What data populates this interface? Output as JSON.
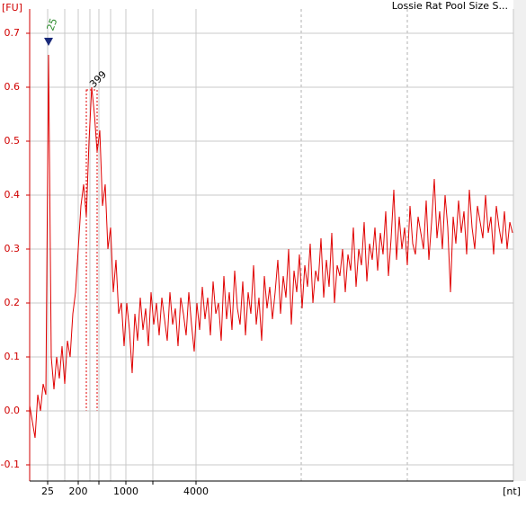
{
  "chart_data": {
    "type": "line",
    "title": "Lossie Rat Pool Size S...",
    "y_unit": "[FU]",
    "x_unit": "[nt]",
    "color": "#e00000",
    "ylim": [
      -0.13,
      0.745
    ],
    "yticks": [
      -0.1,
      {
        "value": 0,
        "label": "0.0"
      },
      0.1,
      0.2,
      0.3,
      0.4,
      0.5,
      0.6,
      0.7
    ],
    "x_axis_labels": [
      "25",
      "200",
      "1000",
      "4000"
    ],
    "grid": true,
    "annotations": [
      {
        "text": "25",
        "color": "#2a8a2a"
      },
      {
        "text": "399",
        "color": "#000000"
      }
    ],
    "values": [
      0.01,
      -0.02,
      -0.05,
      0.03,
      0.0,
      0.05,
      0.03,
      0.66,
      0.1,
      0.04,
      0.1,
      0.06,
      0.12,
      0.05,
      0.13,
      0.1,
      0.18,
      0.22,
      0.3,
      0.38,
      0.42,
      0.36,
      0.5,
      0.6,
      0.55,
      0.48,
      0.52,
      0.38,
      0.42,
      0.3,
      0.34,
      0.22,
      0.28,
      0.18,
      0.2,
      0.12,
      0.2,
      0.15,
      0.07,
      0.18,
      0.13,
      0.21,
      0.15,
      0.19,
      0.12,
      0.22,
      0.16,
      0.2,
      0.14,
      0.21,
      0.17,
      0.13,
      0.22,
      0.16,
      0.19,
      0.12,
      0.21,
      0.18,
      0.14,
      0.22,
      0.16,
      0.11,
      0.2,
      0.15,
      0.23,
      0.17,
      0.21,
      0.14,
      0.24,
      0.18,
      0.2,
      0.13,
      0.25,
      0.17,
      0.22,
      0.15,
      0.26,
      0.19,
      0.16,
      0.24,
      0.14,
      0.22,
      0.18,
      0.27,
      0.16,
      0.21,
      0.13,
      0.25,
      0.19,
      0.23,
      0.17,
      0.22,
      0.28,
      0.18,
      0.25,
      0.21,
      0.3,
      0.16,
      0.26,
      0.22,
      0.29,
      0.19,
      0.27,
      0.23,
      0.31,
      0.2,
      0.26,
      0.24,
      0.32,
      0.21,
      0.28,
      0.23,
      0.33,
      0.2,
      0.27,
      0.25,
      0.3,
      0.22,
      0.29,
      0.26,
      0.34,
      0.23,
      0.3,
      0.27,
      0.35,
      0.24,
      0.31,
      0.28,
      0.34,
      0.26,
      0.33,
      0.29,
      0.37,
      0.25,
      0.32,
      0.41,
      0.28,
      0.36,
      0.3,
      0.34,
      0.27,
      0.38,
      0.31,
      0.29,
      0.36,
      0.33,
      0.3,
      0.39,
      0.28,
      0.35,
      0.43,
      0.32,
      0.37,
      0.3,
      0.4,
      0.34,
      0.22,
      0.36,
      0.31,
      0.39,
      0.33,
      0.37,
      0.29,
      0.41,
      0.34,
      0.3,
      0.38,
      0.35,
      0.32,
      0.4,
      0.33,
      0.36,
      0.29,
      0.38,
      0.34,
      0.31,
      0.37,
      0.3,
      0.35,
      0.33
    ]
  }
}
